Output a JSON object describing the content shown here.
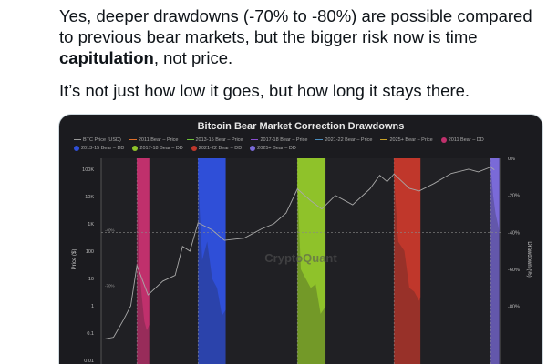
{
  "tweet": {
    "paragraph1_pre": "Yes, deeper drawdowns (-70% to -80%) are possible compared to previous bear markets, but the bigger risk now is time ",
    "paragraph1_bold": "capitulation",
    "paragraph1_post": ", not price.",
    "paragraph2": "It’s not just how low it goes, but how long it stays there."
  },
  "chart_data": {
    "type": "line",
    "title": "Bitcoin Bear Market Correction Drawdowns",
    "ylabel": "Price ($)",
    "y2label": "Drawdown (%)",
    "yscale": "log",
    "ylim": [
      0.01,
      100000
    ],
    "y_ticks": [
      "100K",
      "10K",
      "1K",
      "100",
      "10",
      "1",
      "0.1",
      "0.01"
    ],
    "y2lim": [
      -100,
      0
    ],
    "y2_ticks": [
      "0%",
      "-20%",
      "-40%",
      "-60%",
      "-80%"
    ],
    "reference_lines": [
      "-40%",
      "-70%"
    ],
    "watermark": "CryptoQuant",
    "legend": [
      {
        "label": "BTC Price (USD)",
        "color": "#9a9a9a",
        "kind": "line"
      },
      {
        "label": "2011 Bear – Price",
        "color": "#e0702a",
        "kind": "line"
      },
      {
        "label": "2013-15 Bear – Price",
        "color": "#6fbf3a",
        "kind": "line"
      },
      {
        "label": "2017-18 Bear – Price",
        "color": "#8a4fd0",
        "kind": "line"
      },
      {
        "label": "2021-22 Bear – Price",
        "color": "#4a8ec0",
        "kind": "line"
      },
      {
        "label": "2025+ Bear – Price",
        "color": "#c9a227",
        "kind": "line"
      },
      {
        "label": "2011 Bear – DD",
        "color": "#c0306c",
        "kind": "dot"
      },
      {
        "label": "2013-15 Bear – DD",
        "color": "#2f4fd8",
        "kind": "dot"
      },
      {
        "label": "2017-18 Bear – DD",
        "color": "#8fc22a",
        "kind": "dot"
      },
      {
        "label": "2021-22 Bear – DD",
        "color": "#c0372b",
        "kind": "dot"
      },
      {
        "label": "2025+ Bear – DD",
        "color": "#7a6ad8",
        "kind": "dot"
      }
    ],
    "price_series": {
      "x": [
        2010.1,
        2010.5,
        2010.9,
        2011.2,
        2011.45,
        2011.9,
        2012.5,
        2013.0,
        2013.3,
        2013.6,
        2013.93,
        2014.5,
        2015.0,
        2015.8,
        2016.5,
        2017.0,
        2017.5,
        2017.96,
        2018.5,
        2018.95,
        2019.5,
        2020.2,
        2020.9,
        2021.3,
        2021.6,
        2021.88,
        2022.5,
        2022.9,
        2023.5,
        2024.2,
        2024.9,
        2025.3,
        2025.8,
        2025.95
      ],
      "y": [
        0.06,
        0.07,
        0.3,
        1,
        30,
        2.5,
        8,
        13,
        150,
        100,
        1100,
        600,
        250,
        300,
        650,
        1000,
        2500,
        19000,
        7000,
        3500,
        11000,
        5000,
        19000,
        60000,
        35000,
        67000,
        20000,
        16000,
        30000,
        70000,
        100000,
        80000,
        120000,
        95000
      ]
    },
    "drawdowns": [
      {
        "name": "2011 Bear – DD",
        "start": 2011.45,
        "end": 2011.95,
        "color": "#c0306c",
        "x": [
          2011.45,
          2011.55,
          2011.65,
          2011.75,
          2011.85,
          2011.95
        ],
        "y": [
          -10,
          -60,
          -75,
          -88,
          -93,
          -90
        ]
      },
      {
        "name": "2013-15 Bear – DD",
        "start": 2013.93,
        "end": 2015.05,
        "color": "#2f4fd8",
        "x": [
          2013.93,
          2014.1,
          2014.3,
          2014.5,
          2014.7,
          2014.9,
          2015.05
        ],
        "y": [
          -10,
          -55,
          -45,
          -65,
          -70,
          -85,
          -82
        ]
      },
      {
        "name": "2017-18 Bear – DD",
        "start": 2017.96,
        "end": 2019.1,
        "color": "#8fc22a",
        "x": [
          2017.96,
          2018.1,
          2018.3,
          2018.5,
          2018.7,
          2018.9,
          2019.1
        ],
        "y": [
          -15,
          -60,
          -65,
          -70,
          -68,
          -84,
          -80
        ]
      },
      {
        "name": "2021-22 Bear – DD",
        "start": 2021.88,
        "end": 2022.95,
        "color": "#c0372b",
        "x": [
          2021.88,
          2022.05,
          2022.3,
          2022.5,
          2022.7,
          2022.9,
          2022.95
        ],
        "y": [
          -10,
          -45,
          -50,
          -70,
          -72,
          -77,
          -75
        ]
      },
      {
        "name": "2025+ Bear – DD",
        "start": 2025.8,
        "end": 2026.15,
        "color": "#7a6ad8",
        "x": [
          2025.8,
          2025.9,
          2026.0,
          2026.1,
          2026.15
        ],
        "y": [
          -5,
          -20,
          -30,
          -36,
          -40
        ]
      }
    ]
  }
}
